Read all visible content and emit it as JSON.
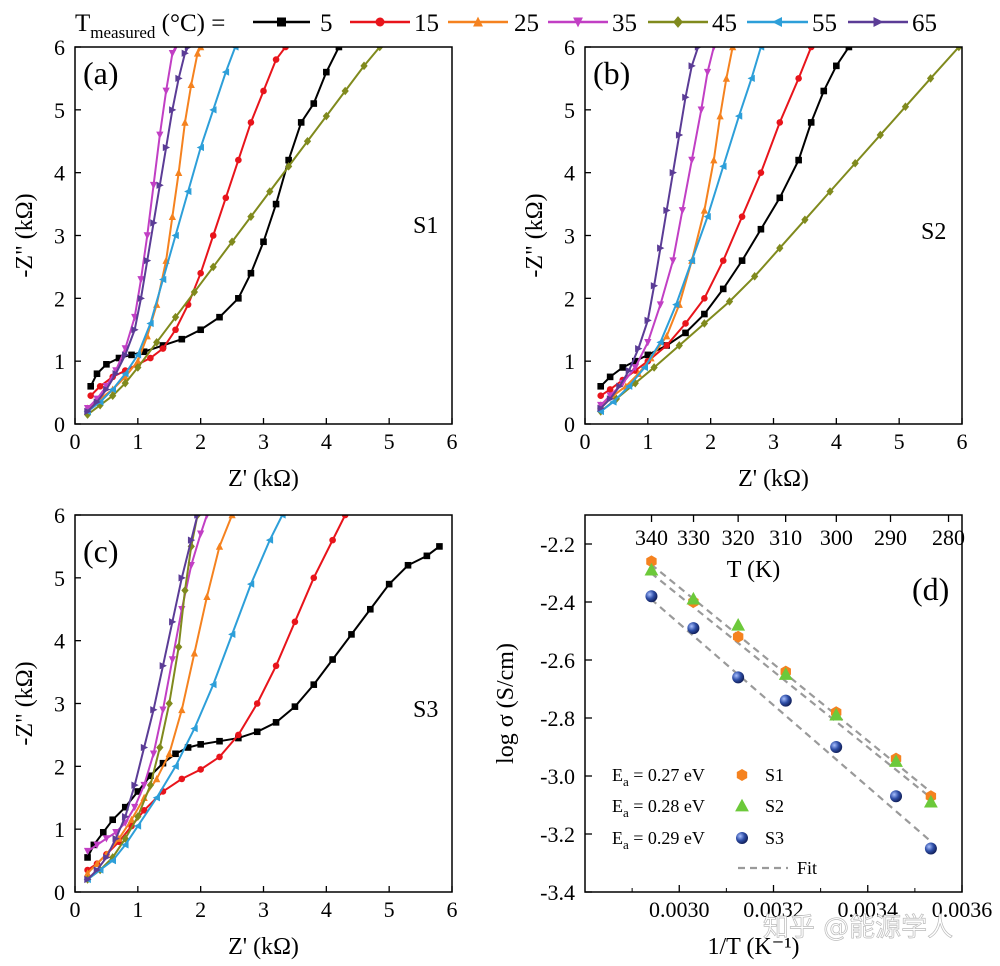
{
  "legend": {
    "prefix_main": "T",
    "prefix_sub": "measured",
    "prefix_unit": " (°C) =",
    "entries": [
      {
        "label": "5",
        "color": "#000000",
        "marker": "square"
      },
      {
        "label": "15",
        "color": "#e8141b",
        "marker": "circle"
      },
      {
        "label": "25",
        "color": "#f5821f",
        "marker": "triangle-up"
      },
      {
        "label": "35",
        "color": "#c13fc4",
        "marker": "triangle-down"
      },
      {
        "label": "45",
        "color": "#808a1d",
        "marker": "diamond"
      },
      {
        "label": "55",
        "color": "#2d9fd9",
        "marker": "triangle-left"
      },
      {
        "label": "65",
        "color": "#5b3c96",
        "marker": "triangle-right"
      }
    ]
  },
  "watermark": "知乎 @能源学人",
  "chart_data": [
    {
      "type": "line",
      "panel": "(a)",
      "sample": "S1",
      "xlabel": "Z' (kΩ)",
      "ylabel": "-Z\" (kΩ)",
      "xlim": [
        0,
        6
      ],
      "ylim": [
        0,
        6
      ],
      "xticks": [
        "0",
        "1",
        "2",
        "3",
        "4",
        "5",
        "6"
      ],
      "yticks": [
        "0",
        "1",
        "2",
        "3",
        "4",
        "5",
        "6"
      ],
      "series": [
        {
          "name": "5",
          "x": [
            0.25,
            0.35,
            0.5,
            0.7,
            0.9,
            1.1,
            1.4,
            1.7,
            2.0,
            2.3,
            2.6,
            2.8,
            3.0,
            3.2,
            3.4,
            3.6,
            3.8,
            4.0,
            4.2
          ],
          "y": [
            0.6,
            0.8,
            0.95,
            1.05,
            1.1,
            1.15,
            1.25,
            1.35,
            1.5,
            1.7,
            2.0,
            2.4,
            2.9,
            3.5,
            4.2,
            4.8,
            5.1,
            5.6,
            6.0
          ]
        },
        {
          "name": "15",
          "x": [
            0.25,
            0.4,
            0.6,
            0.8,
            1.0,
            1.2,
            1.4,
            1.6,
            1.8,
            2.0,
            2.2,
            2.4,
            2.6,
            2.8,
            3.0,
            3.2,
            3.35
          ],
          "y": [
            0.45,
            0.6,
            0.75,
            0.85,
            0.95,
            1.05,
            1.2,
            1.5,
            1.9,
            2.4,
            3.0,
            3.6,
            4.2,
            4.8,
            5.3,
            5.8,
            6.0
          ]
        },
        {
          "name": "25",
          "x": [
            0.2,
            0.4,
            0.6,
            0.8,
            1.0,
            1.15,
            1.3,
            1.45,
            1.55,
            1.65,
            1.75,
            1.85,
            1.95,
            2.0
          ],
          "y": [
            0.25,
            0.4,
            0.55,
            0.75,
            1.0,
            1.4,
            1.9,
            2.6,
            3.3,
            4.0,
            4.8,
            5.4,
            5.9,
            6.0
          ]
        },
        {
          "name": "35",
          "x": [
            0.2,
            0.35,
            0.5,
            0.65,
            0.8,
            0.95,
            1.05,
            1.15,
            1.25,
            1.35,
            1.45,
            1.55,
            1.6
          ],
          "y": [
            0.25,
            0.4,
            0.6,
            0.85,
            1.2,
            1.7,
            2.3,
            3.0,
            3.8,
            4.6,
            5.3,
            5.9,
            6.0
          ]
        },
        {
          "name": "45",
          "x": [
            0.2,
            0.4,
            0.6,
            0.8,
            1.0,
            1.3,
            1.6,
            1.9,
            2.2,
            2.5,
            2.8,
            3.1,
            3.4,
            3.7,
            4.0,
            4.3,
            4.6,
            4.85
          ],
          "y": [
            0.15,
            0.3,
            0.45,
            0.65,
            0.9,
            1.3,
            1.7,
            2.1,
            2.5,
            2.9,
            3.3,
            3.7,
            4.1,
            4.5,
            4.9,
            5.3,
            5.7,
            6.0
          ]
        },
        {
          "name": "55",
          "x": [
            0.2,
            0.4,
            0.6,
            0.8,
            1.0,
            1.2,
            1.4,
            1.6,
            1.8,
            2.0,
            2.2,
            2.4,
            2.55
          ],
          "y": [
            0.2,
            0.35,
            0.55,
            0.8,
            1.1,
            1.6,
            2.3,
            3.0,
            3.7,
            4.4,
            5.0,
            5.6,
            6.0
          ]
        },
        {
          "name": "65",
          "x": [
            0.2,
            0.35,
            0.5,
            0.65,
            0.8,
            0.95,
            1.05,
            1.15,
            1.25,
            1.35,
            1.45,
            1.55,
            1.65,
            1.75,
            1.8
          ],
          "y": [
            0.2,
            0.35,
            0.55,
            0.8,
            1.1,
            1.5,
            2.0,
            2.6,
            3.2,
            3.8,
            4.4,
            5.0,
            5.5,
            5.9,
            6.0
          ]
        }
      ]
    },
    {
      "type": "line",
      "panel": "(b)",
      "sample": "S2",
      "xlabel": "Z' (kΩ)",
      "ylabel": "-Z\" (kΩ)",
      "xlim": [
        0,
        6
      ],
      "ylim": [
        0,
        6
      ],
      "xticks": [
        "0",
        "1",
        "2",
        "3",
        "4",
        "5",
        "6"
      ],
      "yticks": [
        "0",
        "1",
        "2",
        "3",
        "4",
        "5",
        "6"
      ],
      "series": [
        {
          "name": "5",
          "x": [
            0.25,
            0.4,
            0.6,
            0.8,
            1.0,
            1.3,
            1.6,
            1.9,
            2.2,
            2.5,
            2.8,
            3.1,
            3.4,
            3.6,
            3.8,
            4.0,
            4.2
          ],
          "y": [
            0.6,
            0.75,
            0.9,
            1.0,
            1.1,
            1.25,
            1.45,
            1.75,
            2.15,
            2.6,
            3.1,
            3.6,
            4.2,
            4.8,
            5.3,
            5.7,
            6.0
          ]
        },
        {
          "name": "15",
          "x": [
            0.25,
            0.4,
            0.6,
            0.8,
            1.0,
            1.3,
            1.6,
            1.9,
            2.2,
            2.5,
            2.8,
            3.1,
            3.4,
            3.6
          ],
          "y": [
            0.45,
            0.55,
            0.7,
            0.85,
            1.0,
            1.25,
            1.6,
            2.0,
            2.6,
            3.3,
            4.0,
            4.8,
            5.5,
            6.0
          ]
        },
        {
          "name": "25",
          "x": [
            0.25,
            0.45,
            0.65,
            0.85,
            1.05,
            1.3,
            1.5,
            1.7,
            1.9,
            2.05,
            2.15,
            2.25,
            2.35
          ],
          "y": [
            0.3,
            0.45,
            0.6,
            0.8,
            1.05,
            1.4,
            1.9,
            2.6,
            3.4,
            4.2,
            4.9,
            5.5,
            6.0
          ]
        },
        {
          "name": "35",
          "x": [
            0.25,
            0.4,
            0.6,
            0.8,
            1.0,
            1.2,
            1.4,
            1.55,
            1.7,
            1.85,
            1.95,
            2.05
          ],
          "y": [
            0.3,
            0.45,
            0.65,
            0.9,
            1.3,
            1.9,
            2.6,
            3.4,
            4.2,
            5.0,
            5.6,
            6.0
          ]
        },
        {
          "name": "45",
          "x": [
            0.25,
            0.5,
            0.8,
            1.1,
            1.5,
            1.9,
            2.3,
            2.7,
            3.1,
            3.5,
            3.9,
            4.3,
            4.7,
            5.1,
            5.5,
            5.95
          ],
          "y": [
            0.2,
            0.4,
            0.65,
            0.9,
            1.25,
            1.6,
            1.95,
            2.35,
            2.8,
            3.25,
            3.7,
            4.15,
            4.6,
            5.05,
            5.5,
            6.0
          ]
        },
        {
          "name": "55",
          "x": [
            0.25,
            0.45,
            0.7,
            0.95,
            1.2,
            1.45,
            1.7,
            1.95,
            2.2,
            2.45,
            2.65,
            2.8
          ],
          "y": [
            0.2,
            0.35,
            0.6,
            0.9,
            1.3,
            1.9,
            2.6,
            3.3,
            4.1,
            4.9,
            5.5,
            6.0
          ]
        },
        {
          "name": "65",
          "x": [
            0.25,
            0.4,
            0.55,
            0.7,
            0.85,
            1.0,
            1.1,
            1.2,
            1.3,
            1.4,
            1.5,
            1.6,
            1.7,
            1.8
          ],
          "y": [
            0.25,
            0.4,
            0.6,
            0.85,
            1.2,
            1.65,
            2.2,
            2.8,
            3.4,
            4.0,
            4.6,
            5.2,
            5.7,
            6.0
          ]
        }
      ]
    },
    {
      "type": "line",
      "panel": "(c)",
      "sample": "S3",
      "xlabel": "Z' (kΩ)",
      "ylabel": "-Z\" (kΩ)",
      "xlim": [
        0,
        6
      ],
      "ylim": [
        0,
        6
      ],
      "xticks": [
        "0",
        "1",
        "2",
        "3",
        "4",
        "5",
        "6"
      ],
      "yticks": [
        "0",
        "1",
        "2",
        "3",
        "4",
        "5",
        "6"
      ],
      "series": [
        {
          "name": "5",
          "x": [
            0.2,
            0.3,
            0.45,
            0.6,
            0.8,
            1.0,
            1.2,
            1.4,
            1.6,
            1.8,
            2.0,
            2.3,
            2.6,
            2.9,
            3.2,
            3.5,
            3.8,
            4.1,
            4.4,
            4.7,
            5.0,
            5.3,
            5.6,
            5.8
          ],
          "y": [
            0.55,
            0.75,
            0.95,
            1.15,
            1.35,
            1.6,
            1.85,
            2.05,
            2.2,
            2.3,
            2.35,
            2.4,
            2.45,
            2.55,
            2.7,
            2.95,
            3.3,
            3.7,
            4.1,
            4.5,
            4.9,
            5.2,
            5.35,
            5.5
          ]
        },
        {
          "name": "15",
          "x": [
            0.2,
            0.35,
            0.5,
            0.7,
            0.9,
            1.1,
            1.4,
            1.7,
            2.0,
            2.3,
            2.6,
            2.9,
            3.2,
            3.5,
            3.8,
            4.1,
            4.3
          ],
          "y": [
            0.35,
            0.45,
            0.6,
            0.8,
            1.05,
            1.3,
            1.6,
            1.8,
            1.95,
            2.15,
            2.5,
            3.0,
            3.6,
            4.3,
            5.0,
            5.6,
            6.0
          ]
        },
        {
          "name": "25",
          "x": [
            0.2,
            0.35,
            0.5,
            0.7,
            0.9,
            1.1,
            1.3,
            1.5,
            1.7,
            1.9,
            2.1,
            2.3,
            2.5
          ],
          "y": [
            0.3,
            0.45,
            0.6,
            0.85,
            1.15,
            1.5,
            1.8,
            2.2,
            2.9,
            3.8,
            4.7,
            5.5,
            6.0
          ]
        },
        {
          "name": "35",
          "x": [
            0.2,
            0.35,
            0.5,
            0.65,
            0.8,
            0.95,
            1.1,
            1.25,
            1.4,
            1.55,
            1.7,
            1.85,
            2.0,
            2.1
          ],
          "y": [
            0.65,
            0.75,
            0.85,
            0.95,
            1.1,
            1.35,
            1.7,
            2.2,
            2.9,
            3.7,
            4.5,
            5.2,
            5.7,
            6.0
          ]
        },
        {
          "name": "45",
          "x": [
            0.2,
            0.4,
            0.6,
            0.8,
            1.0,
            1.2,
            1.35,
            1.5,
            1.65,
            1.75,
            1.85,
            1.95
          ],
          "y": [
            0.2,
            0.35,
            0.55,
            0.85,
            1.2,
            1.7,
            2.3,
            3.0,
            3.9,
            4.8,
            5.5,
            6.0
          ]
        },
        {
          "name": "55",
          "x": [
            0.2,
            0.4,
            0.6,
            0.8,
            1.0,
            1.3,
            1.6,
            1.9,
            2.2,
            2.5,
            2.8,
            3.1,
            3.3
          ],
          "y": [
            0.2,
            0.35,
            0.5,
            0.75,
            1.05,
            1.5,
            2.0,
            2.6,
            3.3,
            4.1,
            4.9,
            5.6,
            6.0
          ]
        },
        {
          "name": "65",
          "x": [
            0.2,
            0.35,
            0.5,
            0.65,
            0.8,
            0.95,
            1.1,
            1.25,
            1.4,
            1.55,
            1.7,
            1.85,
            1.95
          ],
          "y": [
            0.2,
            0.35,
            0.55,
            0.85,
            1.2,
            1.7,
            2.3,
            2.9,
            3.6,
            4.3,
            5.0,
            5.6,
            6.0
          ]
        }
      ]
    },
    {
      "type": "scatter",
      "panel": "(d)",
      "xlabel": "1/T (K⁻¹)",
      "ylabel": "log σ (S/cm)",
      "top_xlabel": "T (K)",
      "xlim": [
        0.0028,
        0.0036
      ],
      "ylim": [
        -3.4,
        -2.1
      ],
      "xticks": [
        "0.0030",
        "0.0032",
        "0.0034",
        "0.0036"
      ],
      "yticks": [
        "-2.2",
        "-2.4",
        "-2.6",
        "-2.8",
        "-3.0",
        "-3.2",
        "-3.4"
      ],
      "top_ticks": [
        "340",
        "330",
        "320",
        "310",
        "300",
        "290",
        "280"
      ],
      "legend": [
        {
          "ea_main": "E",
          "ea_sub": "a",
          "ea_rest": " = 0.27 eV",
          "name": "S1",
          "color": "#f5821f",
          "marker": "hexagon"
        },
        {
          "ea_main": "E",
          "ea_sub": "a",
          "ea_rest": " = 0.28 eV",
          "name": "S2",
          "color": "#6cc93a",
          "marker": "triangle"
        },
        {
          "ea_main": "E",
          "ea_sub": "a",
          "ea_rest": " = 0.29 eV",
          "name": "S3",
          "color": "#2f4fa8",
          "marker": "sphere"
        },
        {
          "name": "Fit",
          "color": "#999999",
          "marker": "dash"
        }
      ],
      "series": [
        {
          "name": "S1",
          "x": [
            0.002941,
            0.00303,
            0.003125,
            0.003226,
            0.003333,
            0.00346,
            0.003534
          ],
          "y": [
            -2.26,
            -2.4,
            -2.52,
            -2.64,
            -2.78,
            -2.94,
            -3.07
          ]
        },
        {
          "name": "S2",
          "x": [
            0.002941,
            0.00303,
            0.003125,
            0.003226,
            0.003333,
            0.00346,
            0.003534
          ],
          "y": [
            -2.29,
            -2.39,
            -2.48,
            -2.65,
            -2.79,
            -2.95,
            -3.09
          ]
        },
        {
          "name": "S3",
          "x": [
            0.002941,
            0.00303,
            0.003125,
            0.003226,
            0.003333,
            0.00346,
            0.003534
          ],
          "y": [
            -2.38,
            -2.49,
            -2.66,
            -2.74,
            -2.9,
            -3.07,
            -3.25
          ]
        }
      ],
      "fits": [
        {
          "name": "S1",
          "x": [
            0.00294,
            0.00353
          ],
          "y": [
            -2.27,
            -3.05
          ]
        },
        {
          "name": "S2",
          "x": [
            0.00294,
            0.00353
          ],
          "y": [
            -2.3,
            -3.07
          ]
        },
        {
          "name": "S3",
          "x": [
            0.00294,
            0.00353
          ],
          "y": [
            -2.39,
            -3.22
          ]
        }
      ]
    }
  ]
}
